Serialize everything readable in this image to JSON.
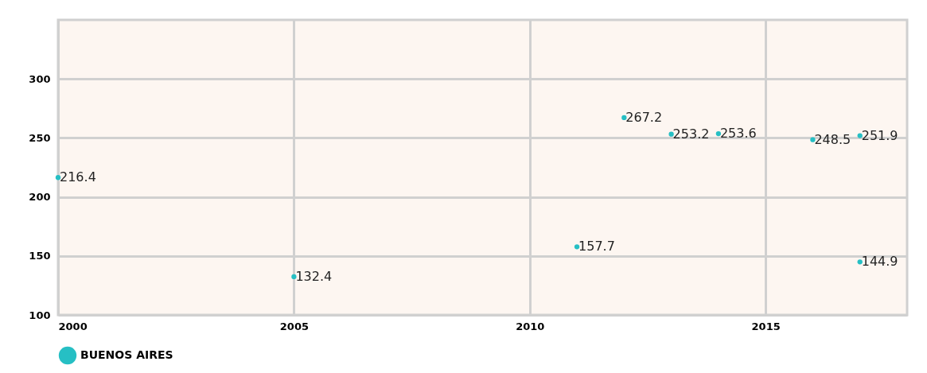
{
  "chart_data": {
    "type": "scatter",
    "marker": "circle",
    "data_labels": true,
    "grid": true,
    "legend": "bottom",
    "x": [
      2000,
      2005,
      2011,
      2012,
      2013,
      2014,
      2016,
      2017,
      2017
    ],
    "series": [
      {
        "name": "BUENOS AIRES",
        "color": "#26bfc4",
        "values": [
          216.4,
          132.4,
          157.7,
          267.2,
          253.2,
          253.6,
          248.5,
          251.9,
          144.9
        ]
      }
    ],
    "xlim": [
      2000,
      2018
    ],
    "xticks": [
      2000,
      2005,
      2010,
      2015
    ],
    "ylim": [
      100,
      350
    ],
    "yticks": [
      100,
      150,
      200,
      250,
      300
    ]
  }
}
